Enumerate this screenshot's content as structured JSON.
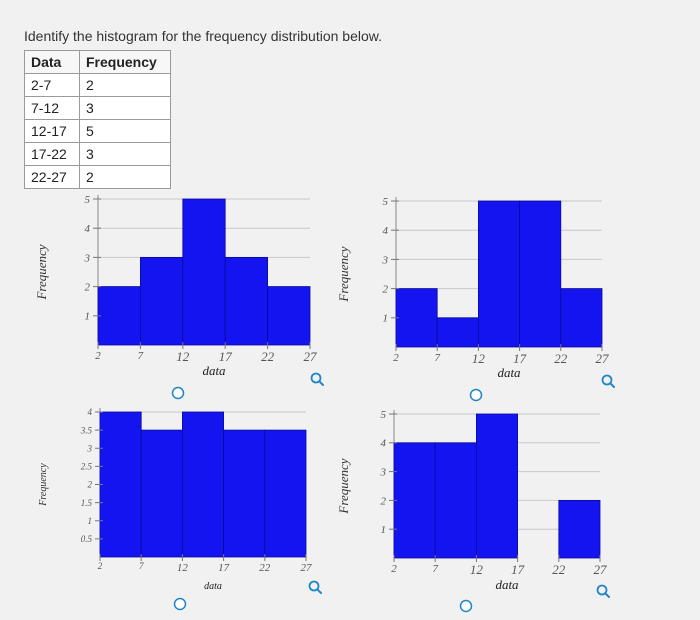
{
  "question": "Identify the histogram for the frequency distribution below.",
  "table": {
    "headers": [
      "Data",
      "Frequency"
    ],
    "rows": [
      [
        "2-7",
        "2"
      ],
      [
        "7-12",
        "3"
      ],
      [
        "12-17",
        "5"
      ],
      [
        "17-22",
        "3"
      ],
      [
        "22-27",
        "2"
      ]
    ]
  },
  "colors": {
    "bar": "#1414f0",
    "bar_stroke": "#0a0a9a",
    "grid": "#c8c8c8",
    "option_ring": "#1f86c9"
  },
  "icons": {
    "option": "radio-circle-icon",
    "zoom": "magnifier-icon"
  },
  "chart_data": [
    {
      "type": "bar",
      "xlabel": "data",
      "ylabel": "Frequency",
      "x_ticks": [
        "2",
        "7",
        "12",
        "17",
        "22",
        "27"
      ],
      "y_ticks": [
        "1",
        "2",
        "3",
        "4",
        "5"
      ],
      "ylim": [
        0,
        5
      ],
      "bin_edges": [
        2,
        7,
        12,
        17,
        22,
        27
      ],
      "values": [
        2,
        3,
        5,
        3,
        2
      ]
    },
    {
      "type": "bar",
      "xlabel": "data",
      "ylabel": "Frequency",
      "x_ticks": [
        "2",
        "7",
        "12",
        "17",
        "22",
        "27"
      ],
      "y_ticks": [
        "1",
        "2",
        "3",
        "4",
        "5"
      ],
      "ylim": [
        0,
        5
      ],
      "bin_edges": [
        2,
        7,
        12,
        17,
        22,
        27
      ],
      "values": [
        2,
        1,
        5,
        5,
        2
      ]
    },
    {
      "type": "bar",
      "xlabel": "data",
      "ylabel": "Frequency",
      "x_ticks": [
        "2",
        "7",
        "12",
        "17",
        "22",
        "27"
      ],
      "y_ticks": [
        "0.5",
        "1",
        "1.5",
        "2",
        "2.5",
        "3",
        "3.5",
        "4"
      ],
      "ylim": [
        0,
        4
      ],
      "bin_edges": [
        2,
        7,
        12,
        17,
        22,
        27
      ],
      "values": [
        4,
        3.5,
        4,
        3.5,
        3.5
      ]
    },
    {
      "type": "bar",
      "xlabel": "data",
      "ylabel": "Frequency",
      "x_ticks": [
        "2",
        "7",
        "12",
        "17",
        "22",
        "27"
      ],
      "y_ticks": [
        "1",
        "2",
        "3",
        "4",
        "5"
      ],
      "ylim": [
        0,
        5
      ],
      "bin_edges": [
        2,
        7,
        12,
        17,
        22,
        27
      ],
      "values": [
        4,
        4,
        5,
        0,
        2
      ]
    }
  ]
}
